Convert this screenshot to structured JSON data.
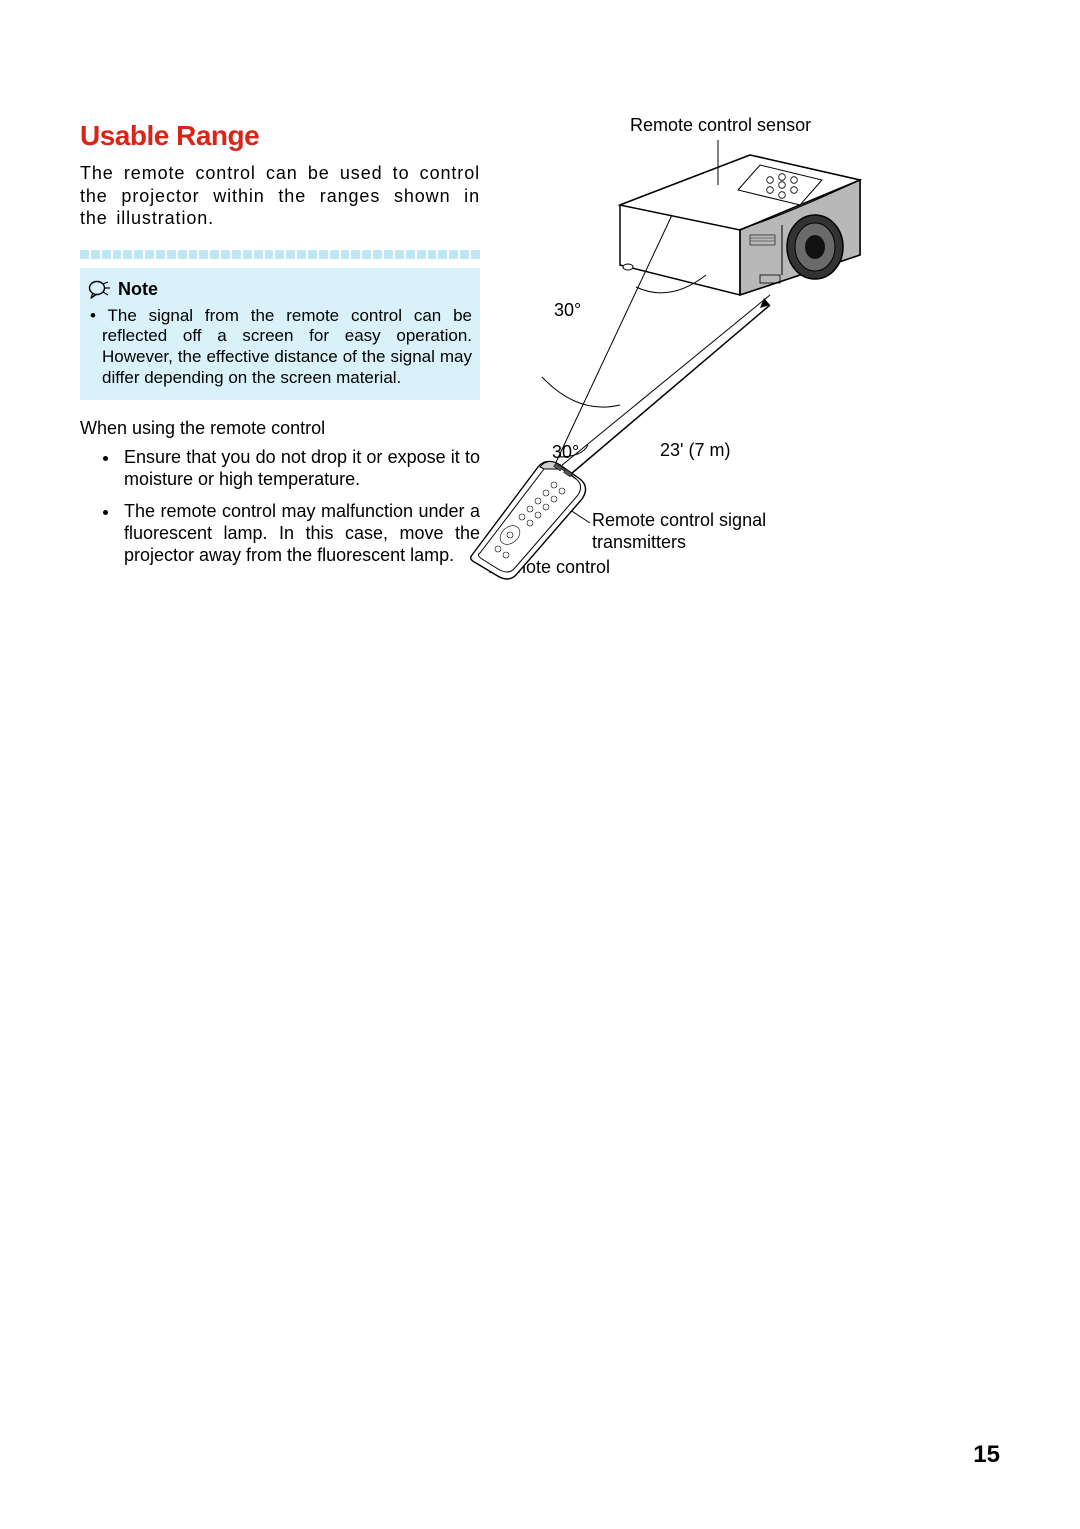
{
  "colors": {
    "title": "#d92418",
    "noteBg": "#d9f2fa",
    "dot": "#bfe7f4",
    "text": "#000000"
  },
  "title": "Usable Range",
  "intro": "The remote control can be used to control the projector within the ranges shown in the illustration.",
  "noteLabel": "Note",
  "noteIcon": "speak-icon",
  "noteItems": [
    "The signal from the remote control can be reflected off a screen for easy operation. However, the effective distance of the signal may differ depending on the screen material."
  ],
  "subhead": "When using the remote control",
  "bullets": [
    "Ensure that you do not drop it or expose it to moisture or high temperature.",
    "The remote control may malfunction under a fluorescent lamp. In this case, move the projector away from the fluorescent lamp."
  ],
  "diagram": {
    "labels": {
      "sensor": "Remote control sensor",
      "transmitters": "Remote control signal transmitters",
      "remote": "Remote control",
      "angle1": "30°",
      "angle2": "30°",
      "distance": "23' (7 m)"
    }
  },
  "pageNumber": "15"
}
